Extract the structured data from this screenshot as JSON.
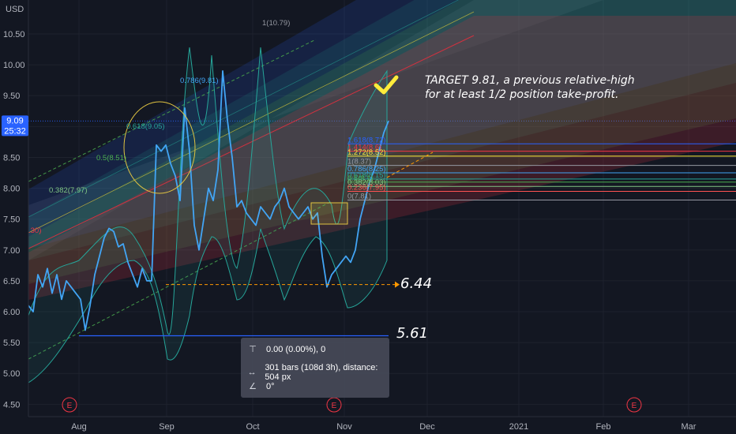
{
  "chart_data": {
    "type": "line",
    "currency_label": "USD",
    "ylim": [
      4.3,
      11.05
    ],
    "y_ticks": [
      "10.50",
      "10.00",
      "9.50",
      "9.00",
      "8.50",
      "8.00",
      "7.50",
      "7.00",
      "6.50",
      "6.00",
      "5.50",
      "5.00",
      "4.50"
    ],
    "y_tick_values": [
      10.5,
      10.0,
      9.5,
      9.0,
      8.5,
      8.0,
      7.5,
      7.0,
      6.5,
      6.0,
      5.5,
      5.0,
      4.5
    ],
    "x_ticks": [
      "Aug",
      "Sep",
      "Oct",
      "Nov",
      "Dec",
      "2021",
      "Feb",
      "Mar"
    ],
    "current_price": {
      "value": "9.09",
      "countdown": "25:32",
      "color": "#2962ff"
    },
    "series": [
      {
        "color": "#42a5f5",
        "x": [
          0,
          6,
          12,
          18,
          24,
          30,
          36,
          42,
          48,
          54,
          60,
          66,
          72,
          78,
          84,
          90,
          96,
          102,
          108,
          114,
          120,
          126,
          132,
          138,
          144,
          150,
          156,
          162,
          168,
          174,
          180,
          186,
          192,
          198,
          204,
          210,
          216,
          222,
          228,
          234,
          240,
          246,
          252,
          258,
          264,
          270,
          276,
          282,
          288,
          294,
          300,
          306,
          312,
          318,
          324,
          330,
          336,
          342,
          348,
          354,
          360,
          366,
          372,
          378,
          384,
          390,
          396,
          402,
          408,
          414,
          420,
          426,
          432,
          438,
          444,
          450,
          456
        ],
        "y": [
          6.1,
          6.0,
          6.6,
          6.4,
          6.7,
          6.3,
          6.6,
          6.2,
          6.5,
          6.4,
          6.3,
          6.2,
          5.7,
          6.1,
          6.6,
          6.9,
          7.2,
          7.35,
          7.3,
          7.05,
          7.1,
          6.8,
          6.6,
          6.4,
          6.7,
          6.5,
          6.5,
          8.7,
          8.6,
          8.7,
          8.4,
          8.2,
          7.8,
          9.3,
          8.6,
          7.4,
          7.0,
          7.5,
          8.0,
          7.8,
          8.3,
          9.9,
          9.1,
          8.5,
          7.7,
          7.8,
          7.6,
          7.5,
          7.4,
          7.7,
          7.6,
          7.5,
          7.7,
          7.8,
          8.0,
          7.7,
          7.6,
          7.5,
          7.6,
          7.7,
          7.5,
          7.6,
          6.9,
          6.4,
          6.6,
          6.7,
          6.8,
          6.9,
          6.8,
          7.0,
          7.5,
          7.8,
          8.1,
          8.3,
          8.6,
          8.9,
          9.09
        ]
      }
    ],
    "fib_levels": [
      {
        "label": "1.618(8.72)",
        "value": 8.72,
        "color": "#2962ff"
      },
      {
        "label": "1.414(8.6)",
        "value": 8.6,
        "color": "#f23645"
      },
      {
        "label": "1.272(8.52)",
        "value": 8.52,
        "color": "#ffeb3b"
      },
      {
        "label": "1(8.37)",
        "value": 8.37,
        "color": "#9598a1"
      },
      {
        "label": "0.786(8.25)",
        "value": 8.25,
        "color": "#42a5f5"
      },
      {
        "label": "0.618(8.15)",
        "value": 8.15,
        "color": "#26a69a"
      },
      {
        "label": "0.5(8.1)",
        "value": 8.1,
        "color": "#4caf50"
      },
      {
        "label": "0.382(8.03)",
        "value": 8.03,
        "color": "#81c784"
      },
      {
        "label": "0.236(7.95)",
        "value": 7.95,
        "color": "#ff5252"
      },
      {
        "label": "0(7.81)",
        "value": 7.81,
        "color": "#9598a1"
      }
    ],
    "channel_labels": [
      {
        "label": "1(10.79)",
        "value": 10.79,
        "color": "#9598a1"
      },
      {
        "label": "0.786(9.81)",
        "value": 9.81,
        "color": "#42a5f5"
      },
      {
        "label": "0.618(9.05)",
        "value": 9.05,
        "color": "#26a69a"
      },
      {
        "label": "0.5(8.51)",
        "value": 8.51,
        "color": "#4caf50"
      },
      {
        "label": "0.382(7.97)",
        "value": 7.97,
        "color": "#81c784"
      },
      {
        "label": ".30)",
        "value": 7.3,
        "color": "#f23645"
      }
    ],
    "annotations": {
      "target_line1": "TARGET 9.81, a previous relative-high",
      "target_line2": "for at least 1/2 position take-profit.",
      "level_644": "6.44",
      "level_561": "5.61",
      "earnings_marker": "E"
    }
  },
  "measure_tool": {
    "price_range": "0.00 (0.00%), 0",
    "bars_range": "301 bars (108d 3h), distance: 504 px",
    "angle": "0°"
  }
}
